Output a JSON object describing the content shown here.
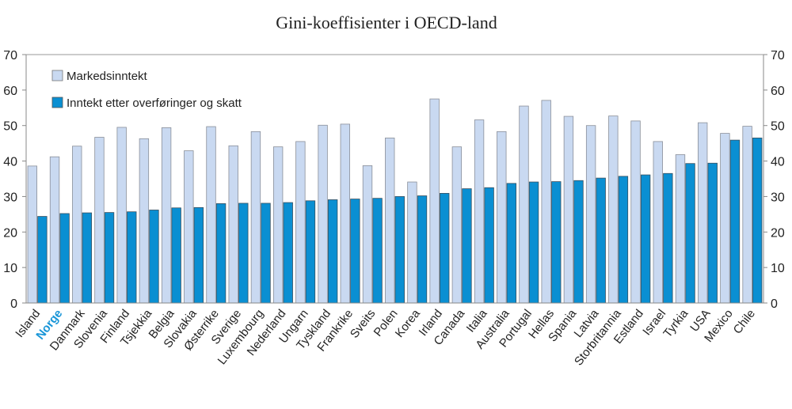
{
  "chart_data": {
    "type": "bar",
    "title": "Gini-koeffisienter i OECD-land",
    "xlabel": "",
    "ylabel": "",
    "ylim": [
      0,
      70
    ],
    "yticks": [
      0,
      10,
      20,
      30,
      40,
      50,
      60,
      70
    ],
    "secondary_y_axis": true,
    "legend_position": "top-left",
    "highlight_category": "Norge",
    "categories": [
      "Island",
      "Norge",
      "Danmark",
      "Slovenia",
      "Finland",
      "Tsjekkia",
      "Belgia",
      "Slovakia",
      "Østerrike",
      "Sverige",
      "Luxembourg",
      "Nederland",
      "Ungarn",
      "Tyskland",
      "Frankrike",
      "Sveits",
      "Polen",
      "Korea",
      "Irland",
      "Canada",
      "Italia",
      "Australia",
      "Portugal",
      "Hellas",
      "Spania",
      "Latvia",
      "Storbritannia",
      "Estland",
      "Israel",
      "Tyrkia",
      "USA",
      "Mexico",
      "Chile"
    ],
    "series": [
      {
        "name": "Markedsinntekt",
        "color": "#c9d9f1",
        "values": [
          38.6,
          41.2,
          44.2,
          46.7,
          49.5,
          46.3,
          49.4,
          42.9,
          49.7,
          44.3,
          48.3,
          44.0,
          45.5,
          50.1,
          50.4,
          38.7,
          46.5,
          34.1,
          57.5,
          44.0,
          51.6,
          48.3,
          55.5,
          57.1,
          52.6,
          50.0,
          52.7,
          51.3,
          45.5,
          41.8,
          50.8,
          47.8,
          49.8
        ]
      },
      {
        "name": "Inntekt etter overføringer og skatt",
        "color": "#0a8fd2",
        "values": [
          24.4,
          25.2,
          25.4,
          25.5,
          25.7,
          26.2,
          26.8,
          26.9,
          28.0,
          28.1,
          28.1,
          28.3,
          28.8,
          29.1,
          29.3,
          29.5,
          30.0,
          30.2,
          30.9,
          32.2,
          32.5,
          33.7,
          34.1,
          34.2,
          34.5,
          35.2,
          35.7,
          36.1,
          36.5,
          39.3,
          39.4,
          45.9,
          46.5
        ]
      }
    ],
    "highlight_color": "#1a96d8"
  }
}
